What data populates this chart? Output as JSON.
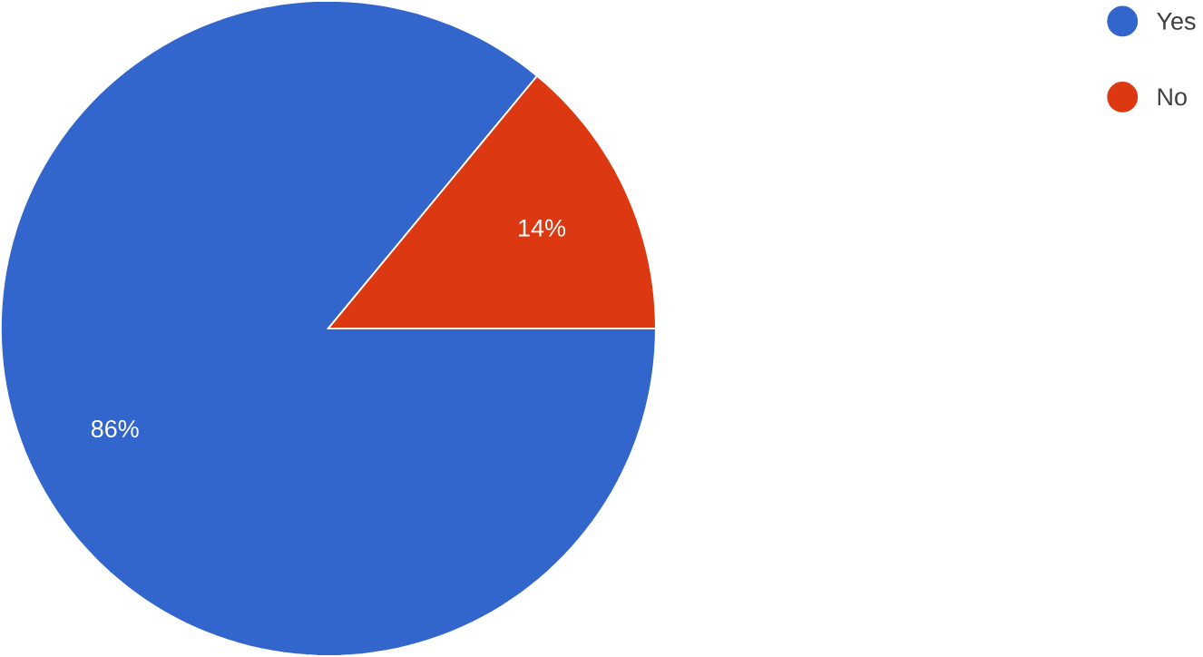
{
  "chart_data": {
    "type": "pie",
    "categories": [
      "Yes",
      "No"
    ],
    "values": [
      86,
      14
    ],
    "colors": [
      "#3366cc",
      "#dc3912"
    ],
    "value_labels": [
      "86%",
      "14%"
    ],
    "legend": "top right"
  }
}
